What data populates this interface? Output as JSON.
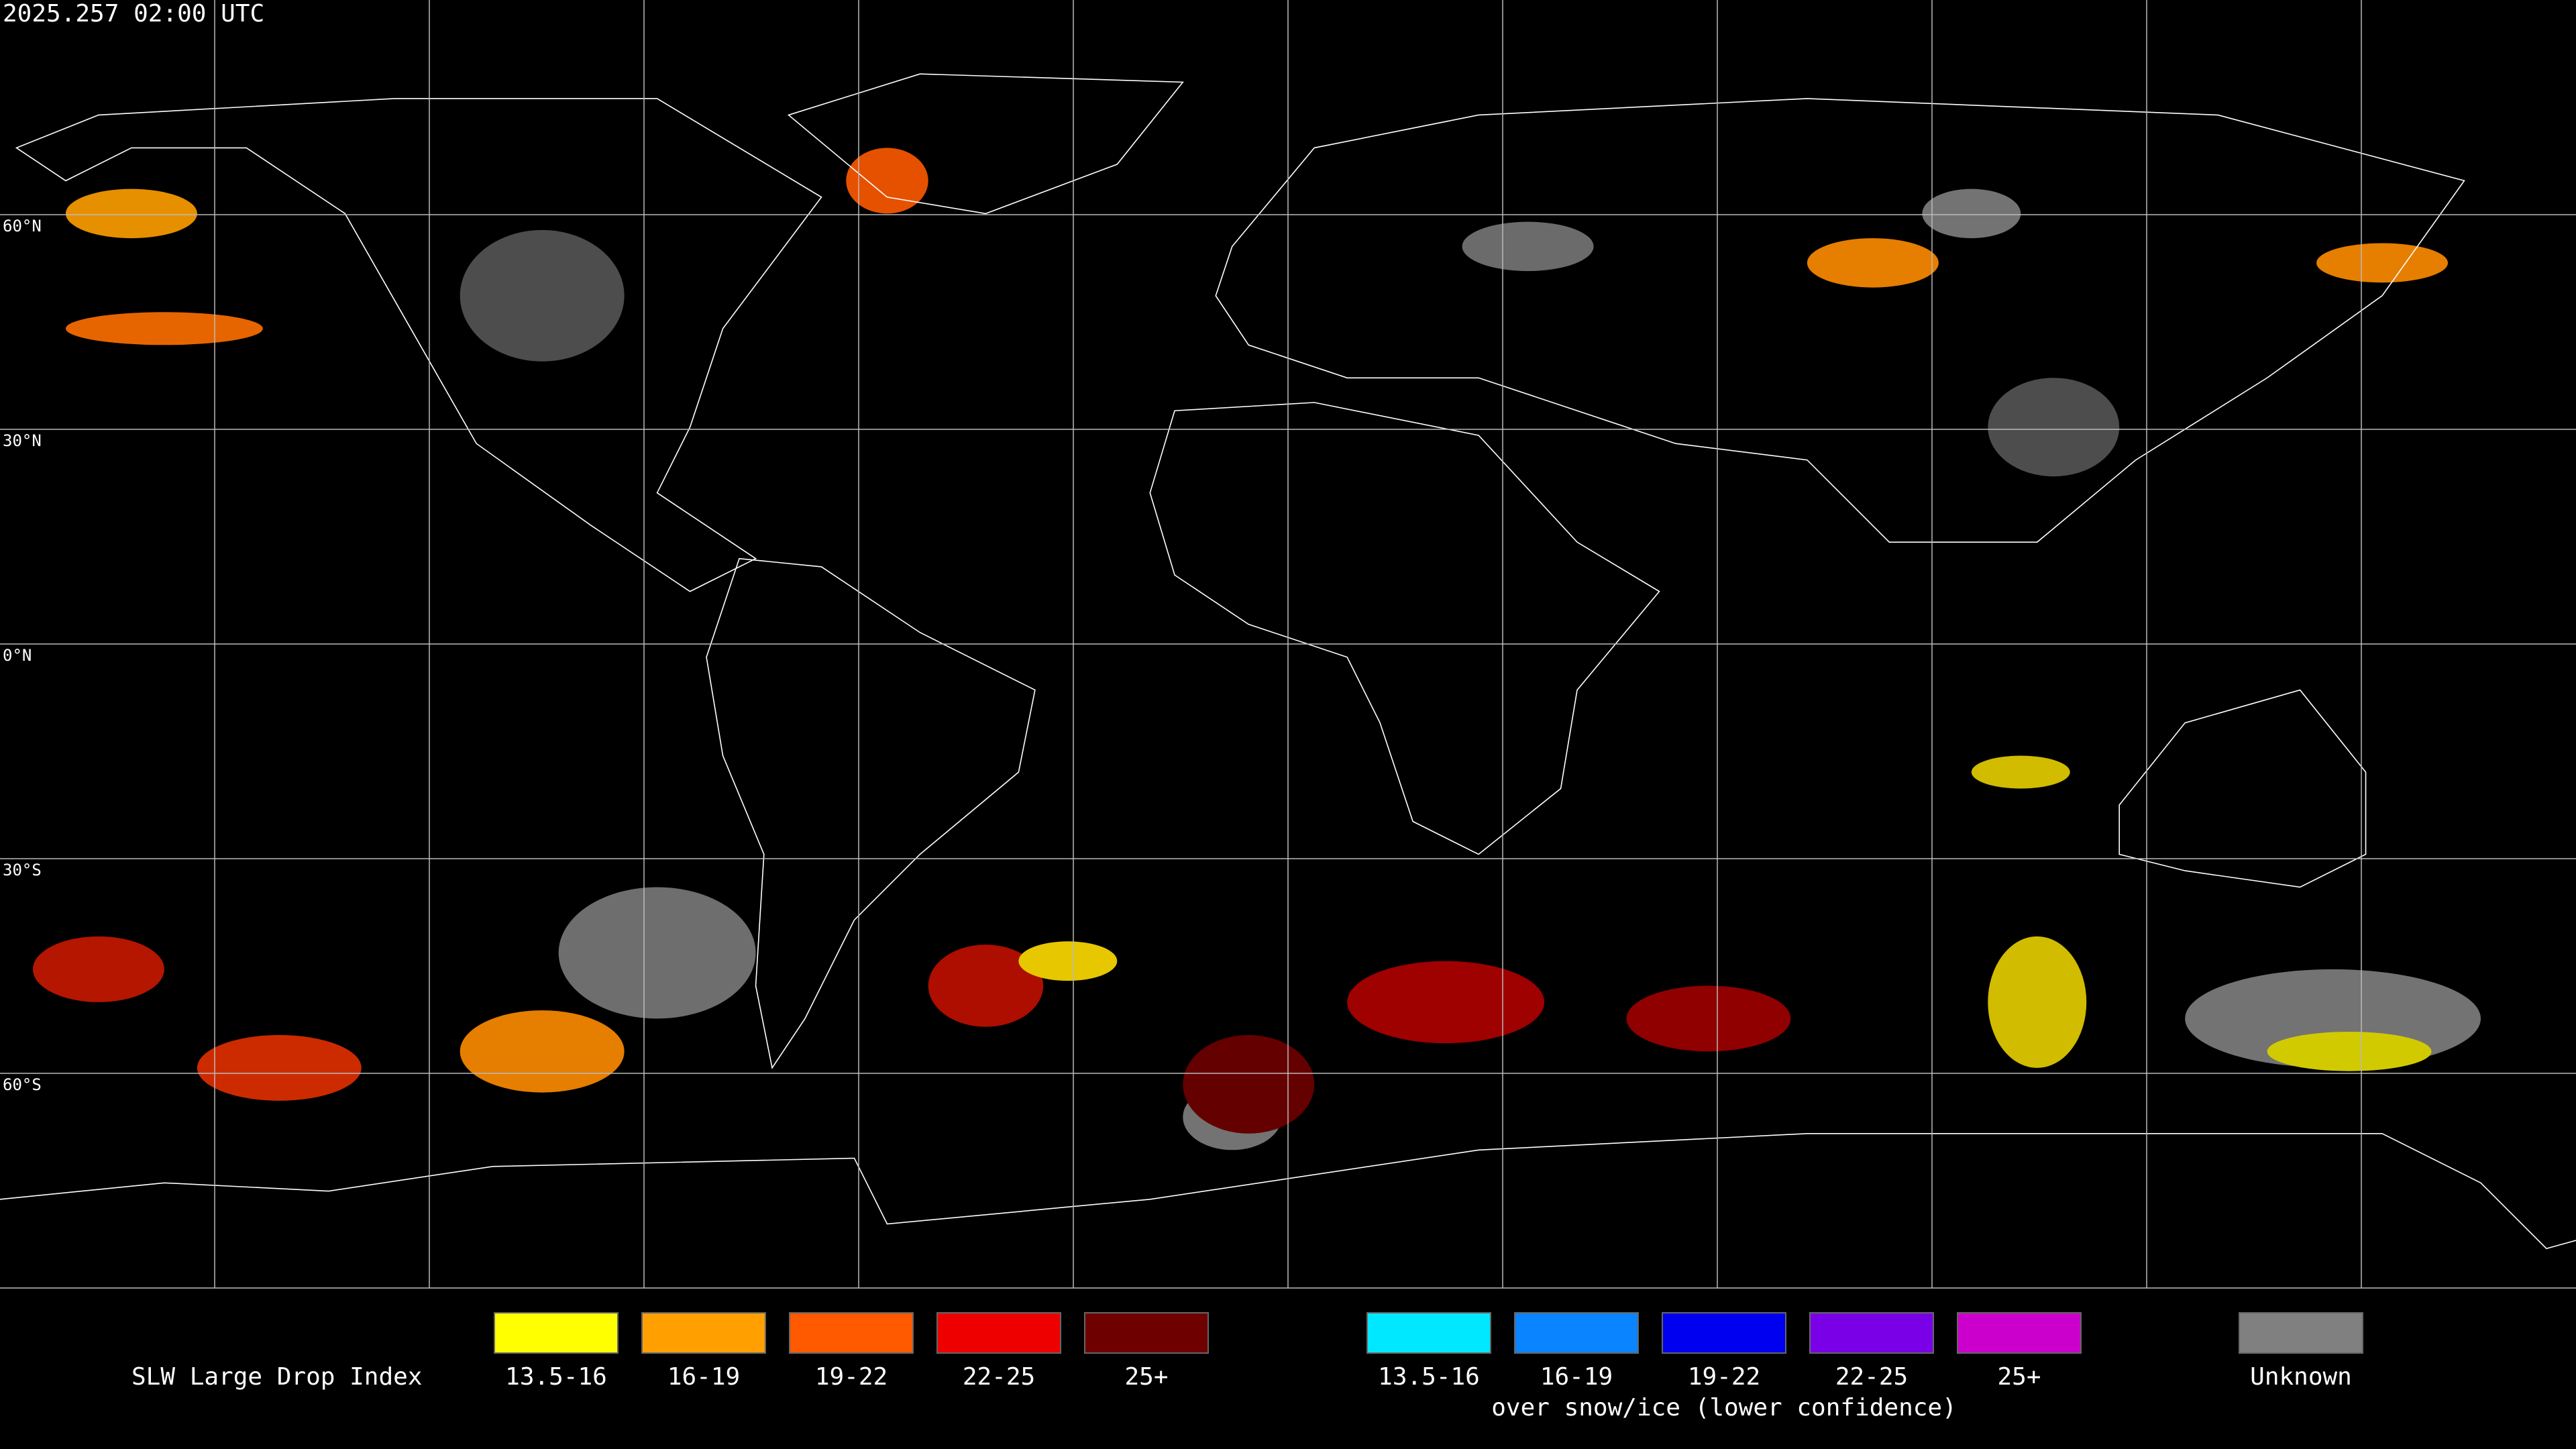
{
  "header": {
    "title": "2025.257 02:00 UTC"
  },
  "map": {
    "latitude_labels": [
      "60°N",
      "30°N",
      "0°N",
      "30°S",
      "60°S"
    ]
  },
  "legend": {
    "title": "SLW Large Drop Index",
    "groups": [
      {
        "items": [
          {
            "label": "13.5-16",
            "color": "#ffff00"
          },
          {
            "label": "16-19",
            "color": "#ffa000"
          },
          {
            "label": "19-22",
            "color": "#ff5a00"
          },
          {
            "label": "22-25",
            "color": "#ee0000"
          },
          {
            "label": "25+",
            "color": "#6e0000"
          }
        ]
      },
      {
        "caption": "over snow/ice (lower confidence)",
        "items": [
          {
            "label": "13.5-16",
            "color": "#00e8ff"
          },
          {
            "label": "16-19",
            "color": "#0a84ff"
          },
          {
            "label": "19-22",
            "color": "#0000f0"
          },
          {
            "label": "22-25",
            "color": "#7a00e8"
          },
          {
            "label": "25+",
            "color": "#cc00cc"
          }
        ]
      },
      {
        "items": [
          {
            "label": "Unknown",
            "color": "#808080"
          }
        ]
      }
    ]
  }
}
